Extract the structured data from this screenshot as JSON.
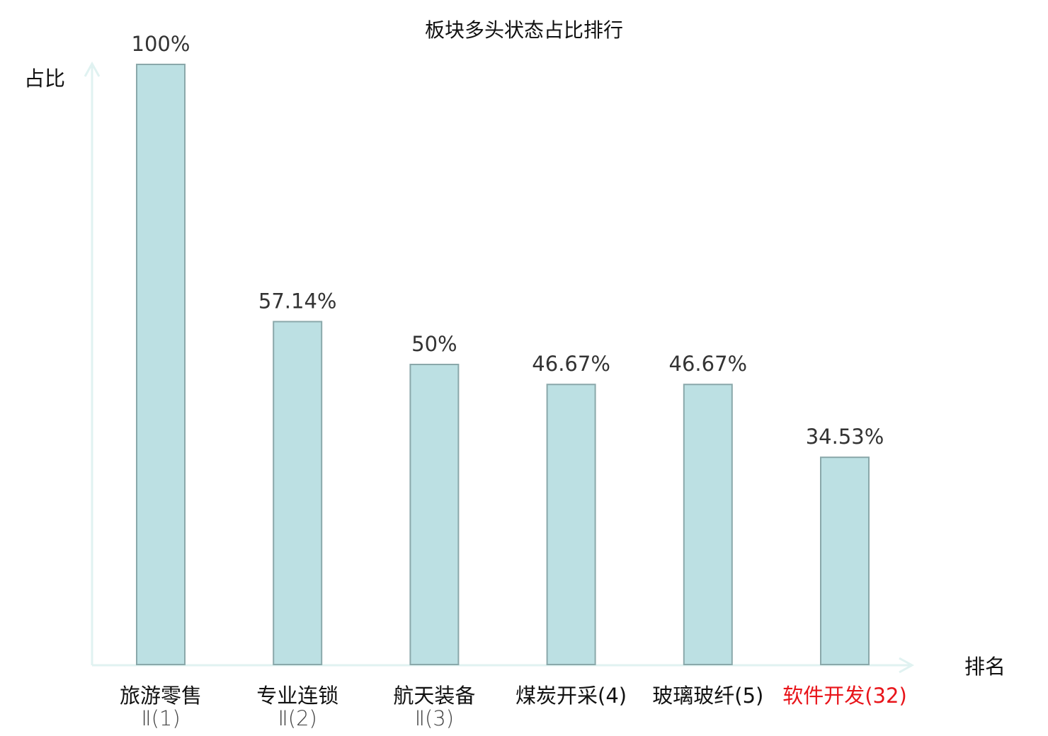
{
  "chart_data": {
    "type": "bar",
    "title": "板块多头状态占比排行",
    "xlabel": "排名",
    "ylabel": "占比",
    "categories": [
      "旅游零售Ⅱ(1)",
      "专业连锁Ⅱ(2)",
      "航天装备Ⅱ(3)",
      "煤炭开采(4)",
      "玻璃玻纤(5)",
      "软件开发(32)"
    ],
    "values": [
      100,
      57.14,
      50,
      46.67,
      46.67,
      34.53
    ],
    "data_labels": [
      "100%",
      "57.14%",
      "50%",
      "46.67%",
      "46.67%",
      "34.53%"
    ],
    "highlight_index": 5,
    "ylim": [
      0,
      100
    ],
    "grid": false,
    "colors": {
      "bar_fill": "#bce0e3",
      "bar_stroke": "#8aa8aa",
      "axis": "#e0f2f1",
      "highlight": "#e8141a",
      "label": "#333333"
    }
  }
}
